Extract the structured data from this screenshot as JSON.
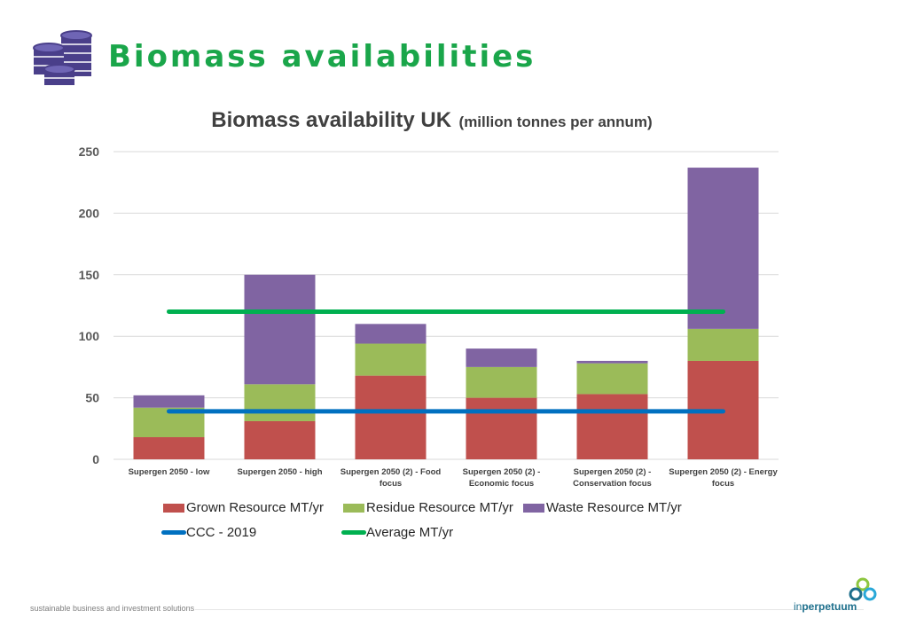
{
  "slide": {
    "title": "Biomass availabilities",
    "icon": "database-stack-icon",
    "footer": "sustainable business and investment solutions",
    "brand_prefix": "in",
    "brand_suffix": "perpetuum"
  },
  "chart_title_main": "Biomass availability UK",
  "chart_title_unit": "(million tonnes per annum)",
  "chart_data": {
    "type": "bar",
    "stacked": true,
    "title": "Biomass availability UK (million tonnes per annum)",
    "categories": [
      [
        "Supergen 2050 - low"
      ],
      [
        "Supergen 2050 - high"
      ],
      [
        "Supergen 2050 (2) - Food",
        "focus"
      ],
      [
        "Supergen 2050 (2) -",
        "Economic focus"
      ],
      [
        "Supergen 2050 (2) -",
        "Conservation focus"
      ],
      [
        "Supergen 2050 (2) - Energy",
        "focus"
      ]
    ],
    "series": [
      {
        "name": "Grown Resource MT/yr",
        "color": "#c0504d",
        "values": [
          18,
          31,
          68,
          50,
          53,
          80
        ]
      },
      {
        "name": "Residue Resource MT/yr",
        "color": "#9bbb59",
        "values": [
          24,
          30,
          26,
          25,
          25,
          26
        ]
      },
      {
        "name": "Waste Resource MT/yr",
        "color": "#8064a2",
        "values": [
          10,
          89,
          16,
          15,
          2,
          131
        ]
      }
    ],
    "lines": [
      {
        "name": "CCC - 2019",
        "color": "#0070c0",
        "value": 39
      },
      {
        "name": "Average MT/yr",
        "color": "#00b050",
        "value": 120
      }
    ],
    "ylim": [
      0,
      250
    ],
    "yticks": [
      0,
      50,
      100,
      150,
      200,
      250
    ],
    "grid": true,
    "legend": "bottom"
  }
}
